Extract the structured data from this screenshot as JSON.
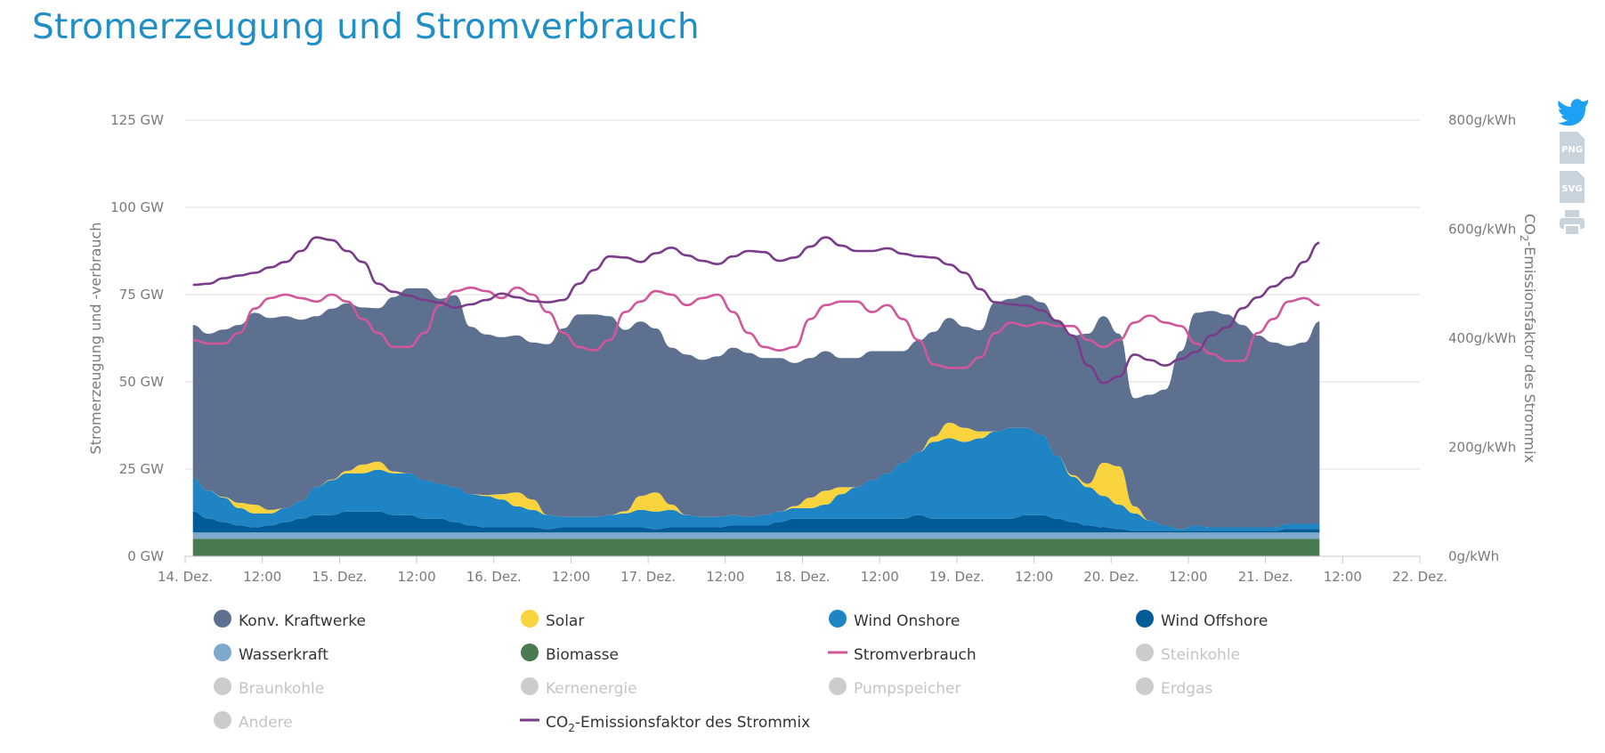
{
  "page": {
    "title": "Stromerzeugung und Stromverbrauch"
  },
  "toolbar": {
    "twitter_icon": "twitter-icon",
    "png_label": "PNG",
    "svg_label": "SVG",
    "print_icon": "printer-icon"
  },
  "chart_data": {
    "type": "area",
    "title": "Stromerzeugung und Stromverbrauch",
    "ylabel": "Stromerzeugung und -verbrauch",
    "y2label_pre": "CO",
    "y2label_sub": "2",
    "y2label_post": "-Emissionsfaktor des Strommix",
    "ylim": [
      0,
      125
    ],
    "y2lim": [
      0,
      800
    ],
    "xlim": [
      0,
      8
    ],
    "yticks": [
      "0 GW",
      "25 GW",
      "50 GW",
      "75 GW",
      "100 GW",
      "125 GW"
    ],
    "y2ticks": [
      "0g/kWh",
      "200g/kWh",
      "400g/kWh",
      "600g/kWh",
      "800g/kWh"
    ],
    "xticks": [
      "14. Dez.",
      "12:00",
      "15. Dez.",
      "12:00",
      "16. Dez.",
      "12:00",
      "17. Dez.",
      "12:00",
      "18. Dez.",
      "12:00",
      "19. Dez.",
      "12:00",
      "20. Dez.",
      "12:00",
      "21. Dez.",
      "12:00",
      "22. Dez."
    ],
    "x": [
      0.05,
      0.15,
      0.25,
      0.35,
      0.45,
      0.55,
      0.65,
      0.75,
      0.85,
      0.95,
      1.05,
      1.15,
      1.25,
      1.35,
      1.45,
      1.55,
      1.65,
      1.75,
      1.85,
      1.95,
      2.05,
      2.15,
      2.25,
      2.35,
      2.45,
      2.55,
      2.65,
      2.75,
      2.85,
      2.95,
      3.05,
      3.15,
      3.25,
      3.35,
      3.45,
      3.55,
      3.65,
      3.75,
      3.85,
      3.95,
      4.05,
      4.15,
      4.25,
      4.35,
      4.45,
      4.55,
      4.65,
      4.75,
      4.85,
      4.95,
      5.05,
      5.15,
      5.25,
      5.35,
      5.45,
      5.55,
      5.65,
      5.75,
      5.85,
      5.95,
      6.05,
      6.15,
      6.25,
      6.35,
      6.45,
      6.55,
      6.65,
      6.75,
      6.85,
      6.95,
      7.05,
      7.15,
      7.25,
      7.35
    ],
    "series": [
      {
        "name": "Biomasse",
        "color": "#4a7a4f",
        "values": [
          5,
          5,
          5,
          5,
          5,
          5,
          5,
          5,
          5,
          5,
          5,
          5,
          5,
          5,
          5,
          5,
          5,
          5,
          5,
          5,
          5,
          5,
          5,
          5,
          5,
          5,
          5,
          5,
          5,
          5,
          5,
          5,
          5,
          5,
          5,
          5,
          5,
          5,
          5,
          5,
          5,
          5,
          5,
          5,
          5,
          5,
          5,
          5,
          5,
          5,
          5,
          5,
          5,
          5,
          5,
          5,
          5,
          5,
          5,
          5,
          5,
          5,
          5,
          5,
          5,
          5,
          5,
          5,
          5,
          5,
          5,
          5,
          5,
          5
        ]
      },
      {
        "name": "Wasserkraft",
        "color": "#7ea9cc",
        "values": [
          1.8,
          1.8,
          1.8,
          1.8,
          1.8,
          1.8,
          1.8,
          1.8,
          1.8,
          1.8,
          1.8,
          1.8,
          1.8,
          1.8,
          1.8,
          1.8,
          1.8,
          1.8,
          1.8,
          1.8,
          1.8,
          1.8,
          1.8,
          1.8,
          1.8,
          1.8,
          1.8,
          1.8,
          1.8,
          1.8,
          1.8,
          1.8,
          1.8,
          1.8,
          1.8,
          1.8,
          1.8,
          1.8,
          1.8,
          1.8,
          1.8,
          1.8,
          1.8,
          1.8,
          1.8,
          1.8,
          1.8,
          1.8,
          1.8,
          1.8,
          1.8,
          1.8,
          1.8,
          1.8,
          1.8,
          1.8,
          1.8,
          1.8,
          1.8,
          1.8,
          1.8,
          1.8,
          1.8,
          1.8,
          1.8,
          1.8,
          1.8,
          1.8,
          1.8,
          1.8,
          1.8,
          1.8,
          1.8,
          1.8
        ]
      },
      {
        "name": "Wind Offshore",
        "color": "#005b96",
        "values": [
          6,
          4,
          3,
          2,
          1.5,
          2,
          3,
          4,
          5,
          5,
          6,
          6,
          6,
          5,
          5,
          4,
          4,
          3,
          2,
          1.5,
          1.5,
          1.5,
          1.5,
          1,
          1.5,
          1.5,
          1.5,
          1.5,
          1.5,
          1.5,
          1,
          1.5,
          1.5,
          1.5,
          1.5,
          2,
          2,
          2,
          3,
          4,
          4,
          4,
          4,
          4,
          4,
          4,
          4,
          5,
          4,
          4,
          4,
          4,
          4,
          4,
          5,
          5,
          4,
          3,
          2,
          1.5,
          1,
          0.5,
          0.5,
          0.5,
          0.5,
          0.5,
          0.5,
          0.5,
          0.5,
          0.5,
          0.5,
          1,
          1,
          1
        ]
      },
      {
        "name": "Wind Onshore",
        "color": "#1e84c4",
        "values": [
          9.5,
          8,
          7,
          5,
          4,
          3.5,
          4,
          5,
          8,
          10,
          11,
          11,
          12,
          12,
          12,
          11,
          10,
          10,
          9,
          9,
          8,
          6,
          5,
          4,
          3,
          3,
          3,
          3.5,
          4,
          5,
          5,
          5,
          3.5,
          3,
          3,
          3,
          2.5,
          3,
          3,
          3,
          3,
          4,
          7,
          9,
          11,
          13,
          16,
          18,
          22,
          23,
          22,
          23,
          25,
          26,
          25,
          23,
          18,
          13,
          11,
          9,
          7,
          5,
          3,
          1.5,
          0.5,
          1.5,
          1,
          1,
          1,
          1,
          1,
          1.5,
          1.5,
          1.5
        ]
      },
      {
        "name": "Solar",
        "color": "#f9d43f",
        "values": [
          0,
          0,
          0.2,
          1.5,
          2.5,
          1,
          0,
          0,
          0,
          0.2,
          0.7,
          2.5,
          2.3,
          0.5,
          0,
          0,
          0,
          0,
          0,
          0.3,
          1.5,
          4,
          3,
          0,
          0,
          0,
          0,
          0,
          0.6,
          4,
          5.5,
          1.5,
          0,
          0,
          0,
          0,
          0,
          0,
          0,
          0.6,
          3,
          4,
          2,
          0,
          0,
          0,
          0,
          0,
          1.5,
          4.5,
          4,
          2,
          0,
          0,
          0,
          0,
          0,
          0.5,
          1,
          9.5,
          11,
          2,
          0,
          0,
          0,
          0,
          0,
          0,
          0,
          0,
          0,
          0,
          0,
          0
        ]
      },
      {
        "name": "Konv. Kraftwerke",
        "color": "#5e7090",
        "values": [
          44,
          45,
          48,
          51,
          55,
          55,
          55,
          52,
          49,
          49,
          48,
          45,
          44,
          50,
          53,
          55,
          53,
          55,
          48,
          46,
          45,
          45,
          45,
          49,
          54,
          58,
          58,
          57,
          52,
          50,
          47,
          45,
          46,
          45,
          46,
          48,
          47,
          45,
          44,
          41,
          40,
          40,
          37,
          37,
          37,
          35,
          32,
          32,
          30,
          30,
          29,
          29,
          37,
          37,
          38,
          38,
          39,
          40,
          43,
          42,
          38,
          31,
          36,
          39,
          51,
          61,
          62,
          61,
          58,
          55,
          53,
          51,
          52,
          58
        ]
      }
    ],
    "lines": [
      {
        "name": "Stromverbrauch",
        "color": "#d0579a",
        "axis": "left",
        "values": [
          62,
          61,
          61,
          64,
          71,
          74,
          75,
          74,
          73,
          75,
          73,
          68,
          64,
          60,
          60,
          64,
          72,
          76,
          77,
          76,
          74,
          77,
          75,
          70,
          64,
          60,
          59,
          62,
          70,
          73,
          76,
          75,
          72,
          74,
          75,
          70,
          64,
          60,
          59,
          60,
          68,
          72,
          73,
          73,
          70,
          72,
          68,
          62,
          55,
          54,
          54,
          57,
          64,
          67,
          66,
          67,
          66,
          66,
          62,
          60,
          62,
          67,
          69,
          67,
          66,
          61,
          58,
          56,
          56,
          64,
          68,
          73,
          74,
          72
        ]
      },
      {
        "name": "CO2-Emissionsfaktor des Strommix",
        "color": "#7a3b8a",
        "axis": "right",
        "values": [
          498,
          500,
          510,
          515,
          520,
          530,
          540,
          560,
          585,
          580,
          560,
          540,
          500,
          485,
          478,
          470,
          465,
          456,
          462,
          470,
          482,
          475,
          468,
          466,
          470,
          500,
          525,
          550,
          548,
          540,
          556,
          566,
          552,
          542,
          536,
          550,
          560,
          558,
          542,
          548,
          568,
          585,
          570,
          560,
          560,
          565,
          555,
          550,
          548,
          535,
          520,
          490,
          466,
          462,
          460,
          451,
          432,
          405,
          350,
          318,
          330,
          370,
          360,
          350,
          362,
          375,
          405,
          420,
          455,
          475,
          495,
          511,
          540,
          575
        ]
      }
    ],
    "legend": [
      {
        "label": "Konv. Kraftwerke",
        "color": "#5e7090",
        "marker": "circle",
        "active": true
      },
      {
        "label": "Solar",
        "color": "#f9d43f",
        "marker": "circle",
        "active": true
      },
      {
        "label": "Wind Onshore",
        "color": "#1e84c4",
        "marker": "circle",
        "active": true
      },
      {
        "label": "Wind Offshore",
        "color": "#005b96",
        "marker": "circle",
        "active": true
      },
      {
        "label": "Wasserkraft",
        "color": "#7ea9cc",
        "marker": "circle",
        "active": true
      },
      {
        "label": "Biomasse",
        "color": "#4a7a4f",
        "marker": "circle",
        "active": true
      },
      {
        "label": "Stromverbrauch",
        "color": "#d0579a",
        "marker": "line",
        "active": true
      },
      {
        "label": "Steinkohle",
        "color": "#cccccc",
        "marker": "circle",
        "active": false
      },
      {
        "label": "Braunkohle",
        "color": "#cccccc",
        "marker": "circle",
        "active": false
      },
      {
        "label": "Kernenergie",
        "color": "#cccccc",
        "marker": "circle",
        "active": false
      },
      {
        "label": "Pumpspeicher",
        "color": "#cccccc",
        "marker": "circle",
        "active": false
      },
      {
        "label": "Erdgas",
        "color": "#cccccc",
        "marker": "circle",
        "active": false
      },
      {
        "label": "Andere",
        "color": "#cccccc",
        "marker": "circle",
        "active": false
      },
      {
        "label": "CO₂-Emissionsfaktor des Strommix",
        "label_pre": "CO",
        "label_sub": "2",
        "label_post": "-Emissionsfaktor des Strommix",
        "color": "#7a3b8a",
        "marker": "line",
        "active": true
      }
    ]
  }
}
